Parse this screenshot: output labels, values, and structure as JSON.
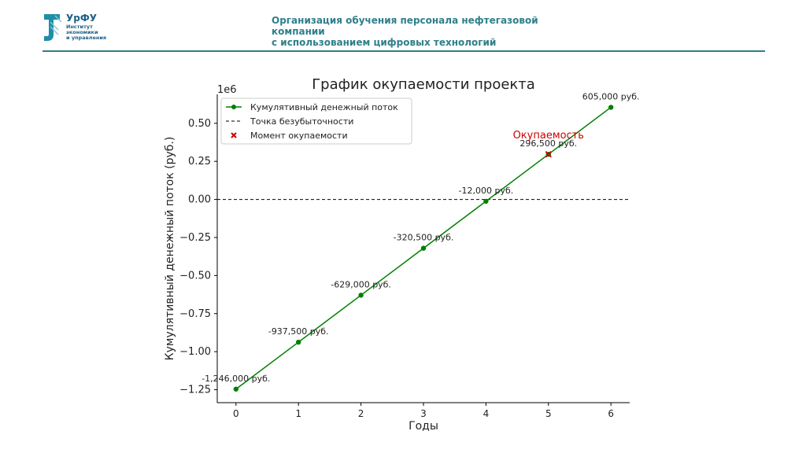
{
  "header": {
    "logo_name": "УрФУ",
    "logo_sub": [
      "Институт",
      "экономики",
      "и управления"
    ],
    "title_lines": [
      "Организация обучения персонала нефтегазовой",
      "компании",
      "с использованием цифровых технологий"
    ],
    "accent_color": "#2f7f8a",
    "logo_color": "#1f5f86"
  },
  "chart_data": {
    "type": "line",
    "title": "График окупаемости проекта",
    "xlabel": "Годы",
    "ylabel": "Кумулятивный денежный поток (руб.)",
    "offset_label": "1e6",
    "x": [
      0,
      1,
      2,
      3,
      4,
      5,
      6
    ],
    "xlim": [
      -0.3,
      6.3
    ],
    "ylim": [
      -1.335,
      0.69
    ],
    "xticks": [
      "0",
      "1",
      "2",
      "3",
      "4",
      "5",
      "6"
    ],
    "yticks": [
      {
        "value": 0.5,
        "label": "0.50"
      },
      {
        "value": 0.25,
        "label": "0.25"
      },
      {
        "value": 0.0,
        "label": "0.00"
      },
      {
        "value": -0.25,
        "label": "−0.25"
      },
      {
        "value": -0.5,
        "label": "−0.50"
      },
      {
        "value": -0.75,
        "label": "−0.75"
      },
      {
        "value": -1.0,
        "label": "−1.00"
      },
      {
        "value": -1.25,
        "label": "−1.25"
      }
    ],
    "series": [
      {
        "name": "Кумулятивный денежный поток",
        "color": "#008000",
        "values": [
          -1246000,
          -937500,
          -629000,
          -320500,
          -12000,
          296500,
          605000
        ],
        "point_labels": [
          "-1,246,000 руб.",
          "-937,500 руб.",
          "-629,000 руб.",
          "-320,500 руб.",
          "-12,000 руб.",
          "296,500 руб.",
          "605,000 руб."
        ]
      }
    ],
    "breakeven": {
      "name": "Точка безубыточности",
      "value": 0,
      "color": "#000000"
    },
    "payback": {
      "name": "Момент окупаемости",
      "x": 5,
      "y": 296500,
      "color": "#cc0000",
      "annotation": "Окупаемость"
    },
    "legend_position": "top-left",
    "grid": false
  }
}
